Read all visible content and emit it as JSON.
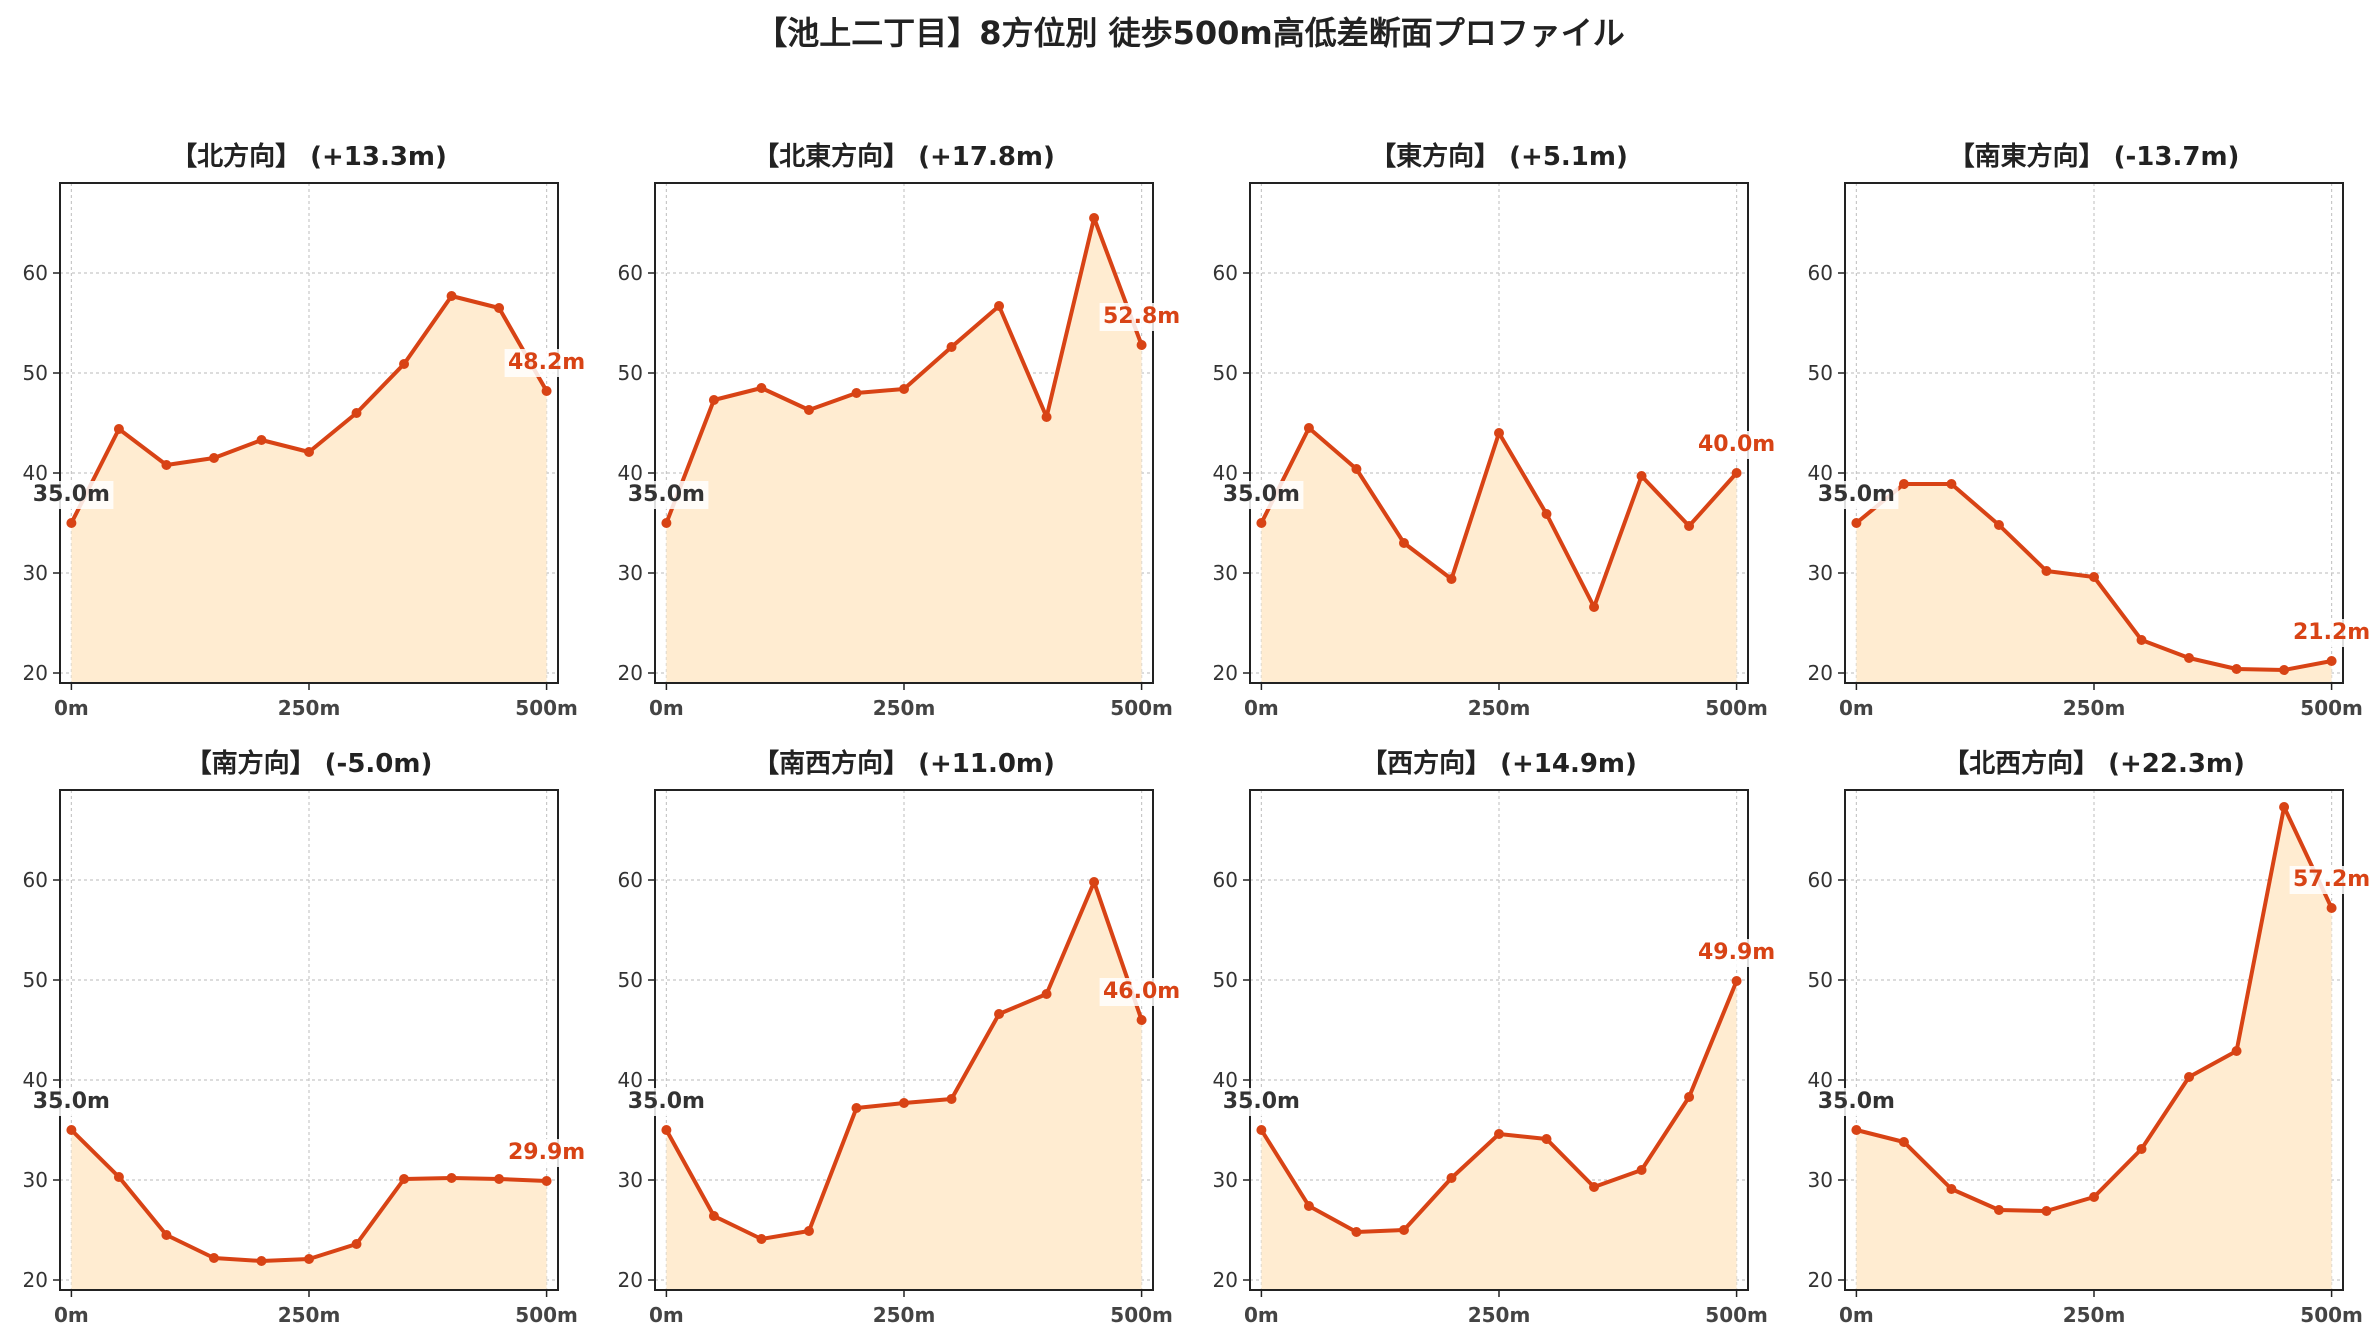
{
  "title": "【池上二丁目】8方位別 徒歩500m高低差断面プロファイル",
  "colors": {
    "line": "#d84315",
    "fill": "#ffecd1",
    "grid": "#c8c8c8",
    "start_label": "#333333",
    "end_label": "#d84315"
  },
  "chart_data": [
    {
      "type": "area",
      "title": "【北方向】 (+13.3m)",
      "x": [
        0,
        50,
        100,
        150,
        200,
        250,
        300,
        350,
        400,
        450,
        500
      ],
      "y": [
        35.0,
        44.4,
        40.8,
        41.5,
        43.3,
        42.1,
        46.0,
        50.9,
        57.7,
        56.5,
        48.2
      ],
      "x_ticks": [
        "0m",
        "250m",
        "500m"
      ],
      "y_ticks": [
        20,
        30,
        40,
        50,
        60
      ],
      "ylim": [
        19,
        69
      ],
      "xlim": [
        -12,
        512
      ],
      "start_label": "35.0m",
      "end_label": "48.2m",
      "grid": true
    },
    {
      "type": "area",
      "title": "【北東方向】 (+17.8m)",
      "x": [
        0,
        50,
        100,
        150,
        200,
        250,
        300,
        350,
        400,
        450,
        500
      ],
      "y": [
        35.0,
        47.3,
        48.5,
        46.3,
        48.0,
        48.4,
        52.6,
        56.7,
        45.6,
        65.5,
        52.8
      ],
      "x_ticks": [
        "0m",
        "250m",
        "500m"
      ],
      "y_ticks": [
        20,
        30,
        40,
        50,
        60
      ],
      "ylim": [
        19,
        69
      ],
      "xlim": [
        -12,
        512
      ],
      "start_label": "35.0m",
      "end_label": "52.8m",
      "grid": true
    },
    {
      "type": "area",
      "title": "【東方向】 (+5.1m)",
      "x": [
        0,
        50,
        100,
        150,
        200,
        250,
        300,
        350,
        400,
        450,
        500
      ],
      "y": [
        35.0,
        44.5,
        40.4,
        33.0,
        29.4,
        44.0,
        35.9,
        26.6,
        39.7,
        34.7,
        40.0
      ],
      "x_ticks": [
        "0m",
        "250m",
        "500m"
      ],
      "y_ticks": [
        20,
        30,
        40,
        50,
        60
      ],
      "ylim": [
        19,
        69
      ],
      "xlim": [
        -12,
        512
      ],
      "start_label": "35.0m",
      "end_label": "40.0m",
      "grid": true
    },
    {
      "type": "area",
      "title": "【南東方向】 (-13.7m)",
      "x": [
        0,
        50,
        100,
        150,
        200,
        250,
        300,
        350,
        400,
        450,
        500
      ],
      "y": [
        35.0,
        38.9,
        38.9,
        34.8,
        30.2,
        29.6,
        23.3,
        21.5,
        20.4,
        20.3,
        21.2
      ],
      "x_ticks": [
        "0m",
        "250m",
        "500m"
      ],
      "y_ticks": [
        20,
        30,
        40,
        50,
        60
      ],
      "ylim": [
        19,
        69
      ],
      "xlim": [
        -12,
        512
      ],
      "start_label": "35.0m",
      "end_label": "21.2m",
      "grid": true
    },
    {
      "type": "area",
      "title": "【南方向】 (-5.0m)",
      "x": [
        0,
        50,
        100,
        150,
        200,
        250,
        300,
        350,
        400,
        450,
        500
      ],
      "y": [
        35.0,
        30.3,
        24.5,
        22.2,
        21.9,
        22.1,
        23.6,
        30.1,
        30.2,
        30.1,
        29.9
      ],
      "x_ticks": [
        "0m",
        "250m",
        "500m"
      ],
      "y_ticks": [
        20,
        30,
        40,
        50,
        60
      ],
      "ylim": [
        19,
        69
      ],
      "xlim": [
        -12,
        512
      ],
      "start_label": "35.0m",
      "end_label": "29.9m",
      "grid": true
    },
    {
      "type": "area",
      "title": "【南西方向】 (+11.0m)",
      "x": [
        0,
        50,
        100,
        150,
        200,
        250,
        300,
        350,
        400,
        450,
        500
      ],
      "y": [
        35.0,
        26.4,
        24.1,
        24.9,
        37.2,
        37.7,
        38.1,
        46.6,
        48.6,
        59.8,
        46.0
      ],
      "x_ticks": [
        "0m",
        "250m",
        "500m"
      ],
      "y_ticks": [
        20,
        30,
        40,
        50,
        60
      ],
      "ylim": [
        19,
        69
      ],
      "xlim": [
        -12,
        512
      ],
      "start_label": "35.0m",
      "end_label": "46.0m",
      "grid": true
    },
    {
      "type": "area",
      "title": "【西方向】 (+14.9m)",
      "x": [
        0,
        50,
        100,
        150,
        200,
        250,
        300,
        350,
        400,
        450,
        500
      ],
      "y": [
        35.0,
        27.4,
        24.8,
        25.0,
        30.2,
        34.6,
        34.1,
        29.3,
        31.0,
        38.3,
        49.9
      ],
      "x_ticks": [
        "0m",
        "250m",
        "500m"
      ],
      "y_ticks": [
        20,
        30,
        40,
        50,
        60
      ],
      "ylim": [
        19,
        69
      ],
      "xlim": [
        -12,
        512
      ],
      "start_label": "35.0m",
      "end_label": "49.9m",
      "grid": true
    },
    {
      "type": "area",
      "title": "【北西方向】 (+22.3m)",
      "x": [
        0,
        50,
        100,
        150,
        200,
        250,
        300,
        350,
        400,
        450,
        500
      ],
      "y": [
        35.0,
        33.8,
        29.1,
        27.0,
        26.9,
        28.3,
        33.1,
        40.3,
        42.9,
        67.3,
        57.2
      ],
      "x_ticks": [
        "0m",
        "250m",
        "500m"
      ],
      "y_ticks": [
        20,
        30,
        40,
        50,
        60
      ],
      "ylim": [
        19,
        69
      ],
      "xlim": [
        -12,
        512
      ],
      "start_label": "35.0m",
      "end_label": "57.2m",
      "grid": true
    }
  ]
}
